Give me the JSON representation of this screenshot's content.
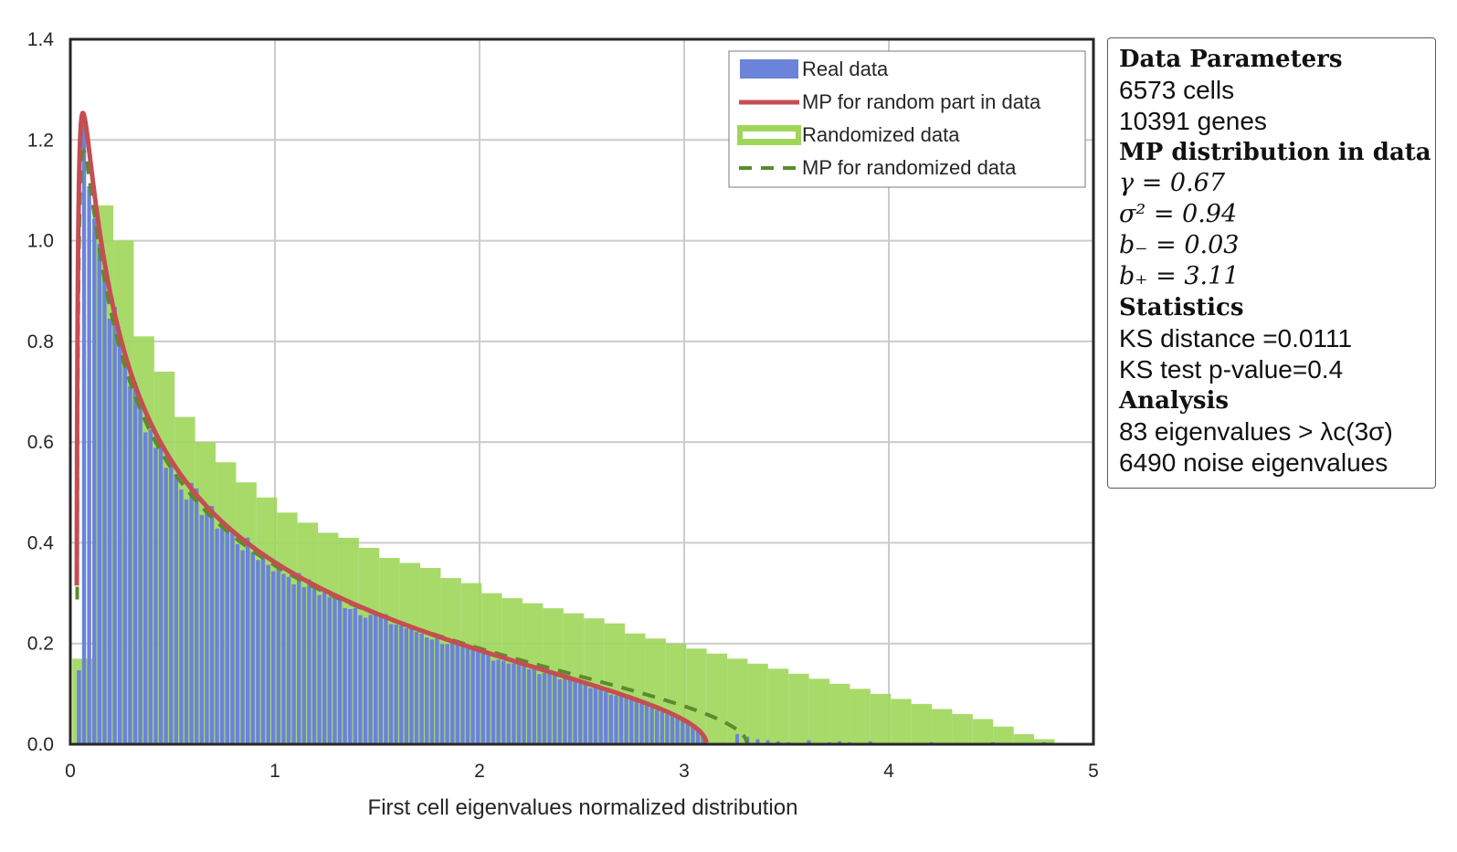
{
  "chart_data": {
    "type": "bar",
    "xlabel": "First cell eigenvalues normalized distribution",
    "ylabel": "",
    "xlim": [
      0,
      5
    ],
    "ylim": [
      0,
      1.4
    ],
    "xticks": [
      0,
      1,
      2,
      3,
      4,
      5
    ],
    "yticks": [
      0.0,
      0.2,
      0.4,
      0.6,
      0.8,
      1.0,
      1.2,
      1.4
    ],
    "xtick_labels": [
      "0",
      "1",
      "2",
      "3",
      "4",
      "5"
    ],
    "ytick_labels": [
      "0.0",
      "0.2",
      "0.4",
      "0.6",
      "0.8",
      "1.0",
      "1.2",
      "1.4"
    ],
    "grid": true,
    "legend_position": "top-right",
    "legend": [
      {
        "label": "Real data",
        "style": "bar",
        "color": "#6b83d8"
      },
      {
        "label": "MP for random part in data",
        "style": "line",
        "color": "#c44e52"
      },
      {
        "label": "Randomized data",
        "style": "bar",
        "color": "#9fd65a"
      },
      {
        "label": "MP for randomized data",
        "style": "dashed",
        "color": "#5c8a2e"
      }
    ],
    "series": [
      {
        "name": "Real data",
        "kind": "histogram",
        "bin_width": 0.025,
        "color": "#6b83d8",
        "mp_params": {
          "gamma": 0.67,
          "sigma2": 0.94
        },
        "tail_values": [
          [
            3.25,
            0.02
          ],
          [
            3.3,
            0.015
          ],
          [
            3.35,
            0.01
          ],
          [
            3.4,
            0.008
          ],
          [
            3.45,
            0.006
          ],
          [
            3.5,
            0.004
          ],
          [
            3.6,
            0.008
          ],
          [
            3.7,
            0.004
          ],
          [
            3.75,
            0.006
          ],
          [
            3.8,
            0.004
          ],
          [
            3.9,
            0.006
          ],
          [
            4.2,
            0.004
          ],
          [
            4.5,
            0.004
          ],
          [
            4.75,
            0.004
          ]
        ]
      },
      {
        "name": "MP for random part in data",
        "kind": "curve",
        "gamma": 0.67,
        "sigma2": 0.94,
        "b_minus": 0.03,
        "b_plus": 3.11,
        "color": "#c44e52"
      },
      {
        "name": "Randomized data",
        "kind": "histogram",
        "bin_width": 0.1,
        "color": "#9fd65a",
        "values": [
          0.17,
          1.07,
          1.0,
          0.81,
          0.74,
          0.65,
          0.6,
          0.56,
          0.52,
          0.49,
          0.46,
          0.44,
          0.42,
          0.41,
          0.39,
          0.37,
          0.36,
          0.35,
          0.33,
          0.32,
          0.3,
          0.29,
          0.28,
          0.27,
          0.26,
          0.25,
          0.24,
          0.22,
          0.21,
          0.2,
          0.19,
          0.18,
          0.17,
          0.16,
          0.15,
          0.14,
          0.13,
          0.12,
          0.11,
          0.1,
          0.09,
          0.08,
          0.07,
          0.06,
          0.05,
          0.035,
          0.02,
          0.01
        ]
      },
      {
        "name": "MP for randomized data",
        "kind": "curve",
        "gamma": 0.67,
        "sigma2": 1.0,
        "color": "#5c8a2e"
      }
    ]
  },
  "info_panel": {
    "data_parameters_heading": "Data Parameters",
    "cells": "6573 cells",
    "genes": "10391 genes",
    "mp_heading": "MP distribution in data",
    "gamma": "γ = 0.67",
    "sigma2": "σ² = 0.94",
    "b_minus": "b₋ = 0.03",
    "b_plus": "b₊ = 3.11",
    "statistics_heading": "Statistics",
    "ks_distance": "KS distance =0.0111",
    "ks_pvalue": "KS test p-value=0.4",
    "analysis_heading": "Analysis",
    "eigen_above": "83 eigenvalues > λc(3σ)",
    "noise_eigen": "6490 noise eigenvalues"
  }
}
